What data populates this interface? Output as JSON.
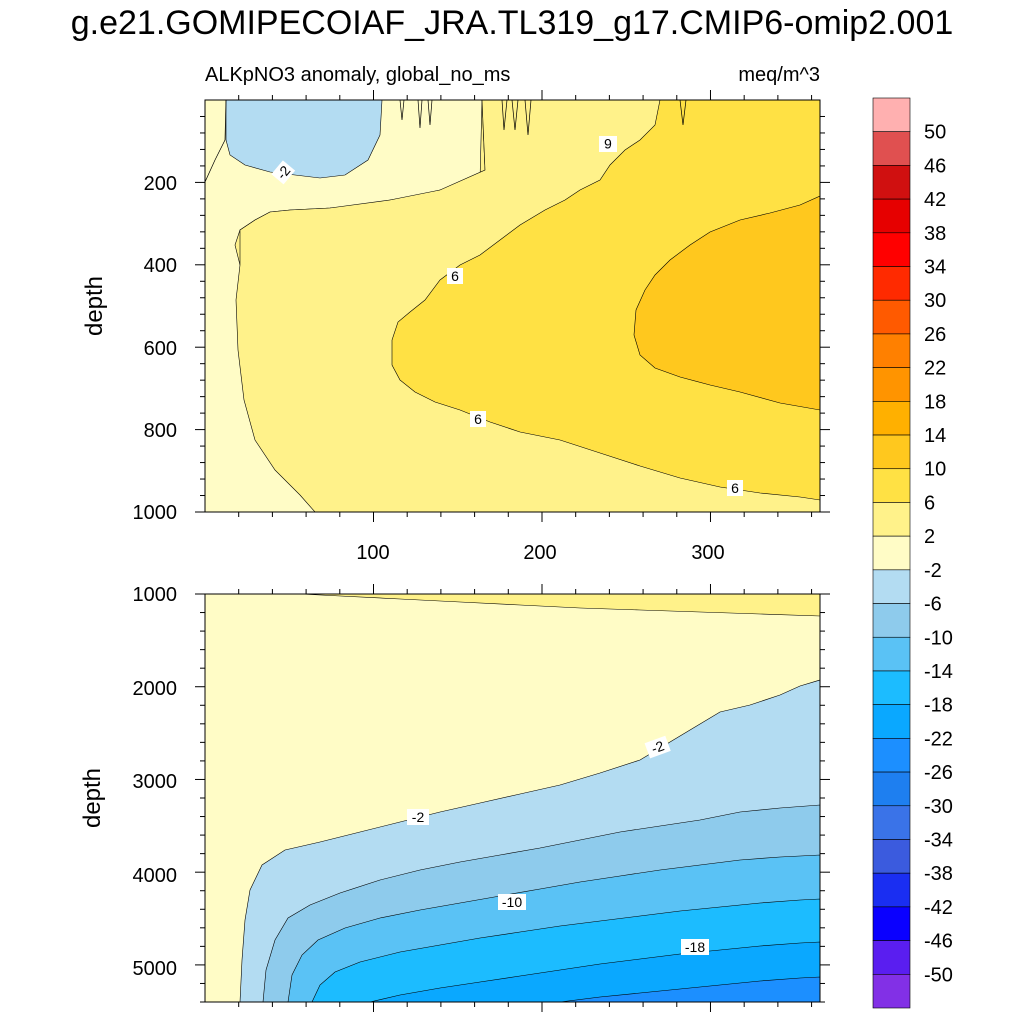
{
  "title": "g.e21.GOMIPECOIAF_JRA.TL319_g17.CMIP6-omip2.001",
  "colors": {
    "-50": "#8230e6",
    "-46": "#5a1ef0",
    "-42": "#0a00ff",
    "-38": "#1a2ef2",
    "-34": "#3b5bde",
    "-30": "#3a73e8",
    "-26": "#1e7ff0",
    "-22": "#1c8fff",
    "-18": "#0aa8ff",
    "-14": "#1cbcff",
    "-10": "#5ac2f5",
    "-6": "#8ecbec",
    "-2": "#b3dcf2",
    "2": "#fffcc6",
    "6": "#fff28a",
    "10": "#ffe144",
    "14": "#ffc81e",
    "18": "#ffb000",
    "22": "#ff9400",
    "26": "#ff8000",
    "30": "#ff5a00",
    "34": "#ff2a00",
    "38": "#ff0000",
    "42": "#e60000",
    "46": "#d01010",
    "50": "#e05050",
    "above": "#ffb0b0"
  },
  "chart_data": [
    {
      "type": "contour",
      "left_title": "ALKpNO3 anomaly, global_no_ms",
      "right_title": "meq/m^3",
      "ylabel": "depth",
      "xlim": [
        0,
        365
      ],
      "ylim": [
        1000,
        0
      ],
      "xticks": [
        "100",
        "200",
        "300"
      ],
      "yticks": [
        "200",
        "400",
        "600",
        "800",
        "1000"
      ],
      "contour_labels": [
        "-2",
        "6",
        "6",
        "6",
        "6"
      ]
    },
    {
      "type": "contour",
      "ylabel": "depth",
      "xlim": [
        0,
        365
      ],
      "ylim": [
        5400,
        1000
      ],
      "yticks": [
        "1000",
        "2000",
        "3000",
        "4000",
        "5000"
      ],
      "contour_labels": [
        "-2",
        "-2",
        "-10",
        "-18"
      ]
    }
  ],
  "colorbar": {
    "labels": [
      "50",
      "46",
      "42",
      "38",
      "34",
      "30",
      "26",
      "22",
      "18",
      "14",
      "10",
      "6",
      "2",
      "-2",
      "-6",
      "-10",
      "-14",
      "-18",
      "-22",
      "-26",
      "-30",
      "-34",
      "-38",
      "-42",
      "-46",
      "-50"
    ]
  }
}
